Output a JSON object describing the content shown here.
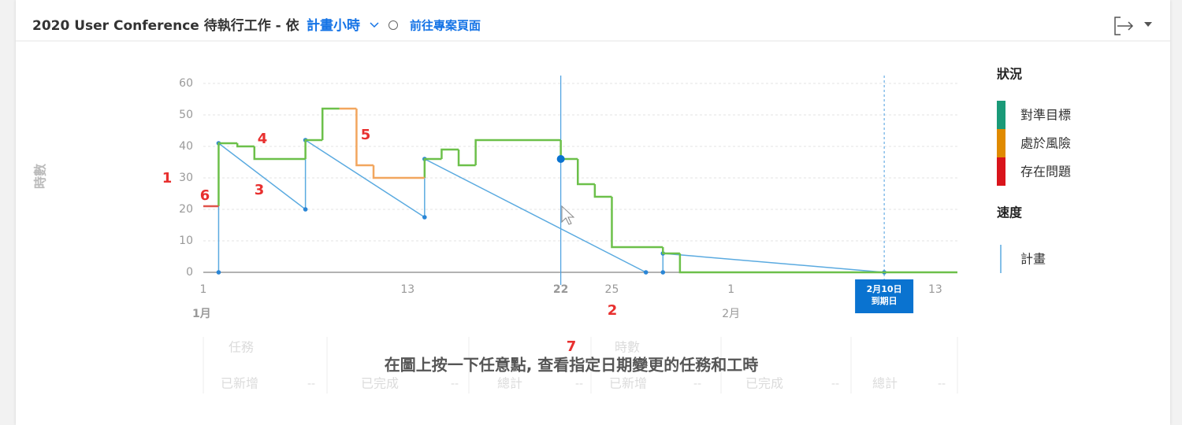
{
  "header": {
    "title": "2020 User Conference 待執行工作 - 依",
    "dropdown": "計畫小時",
    "link": "前往專案頁面"
  },
  "chart_data": {
    "type": "line",
    "step": true,
    "y_label": "時數",
    "x": [
      1,
      1.9,
      3,
      4,
      7,
      8,
      9,
      10,
      11,
      14,
      15,
      16,
      17,
      22,
      23,
      24,
      25,
      28,
      29
    ],
    "series": [
      {
        "name": "對準目標",
        "color": "#6cc04a",
        "legend_color": "#1a9a78",
        "values": [
          null,
          41,
          40,
          36,
          42,
          52,
          null,
          null,
          null,
          36,
          39,
          34,
          42,
          36,
          28,
          24,
          8,
          6,
          0
        ]
      },
      {
        "name": "處於風險",
        "color": "#f2a65e",
        "legend_color": "#e08a00",
        "values": [
          null,
          null,
          null,
          null,
          null,
          null,
          52,
          34,
          30,
          null,
          null,
          null,
          null,
          null,
          null,
          null,
          null,
          null,
          null
        ]
      },
      {
        "name": "存在問題",
        "color": "#e0534a",
        "legend_color": "#d9141b",
        "values": [
          21,
          null,
          null,
          null,
          null,
          null,
          null,
          null,
          null,
          null,
          null,
          null,
          null,
          null,
          null,
          null,
          null,
          null,
          null
        ]
      }
    ],
    "plan": {
      "name": "計畫",
      "color": "#5aaae0",
      "x": [
        1.9,
        1.9,
        7,
        7,
        14,
        14,
        27,
        27.5,
        28,
        28,
        41
      ],
      "values": [
        0,
        41,
        20,
        42,
        17.5,
        36,
        0,
        null,
        0,
        6,
        0
      ]
    },
    "xlim": [
      1,
      45.3
    ],
    "ylim": [
      0,
      60
    ],
    "xticks": [
      1,
      13,
      22,
      25,
      {
        "value": 32,
        "label": "1"
      },
      {
        "value": 44,
        "label": "13"
      }
    ],
    "months": [
      {
        "value": 1,
        "label": "1月"
      },
      {
        "value": 32,
        "label": "2月"
      }
    ],
    "yticks": [
      0,
      10,
      20,
      30,
      40,
      50,
      60
    ],
    "grid": true,
    "due": {
      "x": 41,
      "date": "2月10日",
      "label": "到期日"
    },
    "annotations": [
      "1",
      "2",
      "3",
      "4",
      "5",
      "6",
      "7"
    ]
  },
  "legend": {
    "status_title": "狀況",
    "velocity_title": "速度"
  },
  "table": {
    "groups": [
      "任務",
      "時數"
    ],
    "columns": [
      "已新增",
      "已完成",
      "總計",
      "已新增",
      "已完成",
      "總計"
    ],
    "empty": "--"
  },
  "hint": "在圖上按一下任意點, 查看指定日期變更的任務和工時"
}
